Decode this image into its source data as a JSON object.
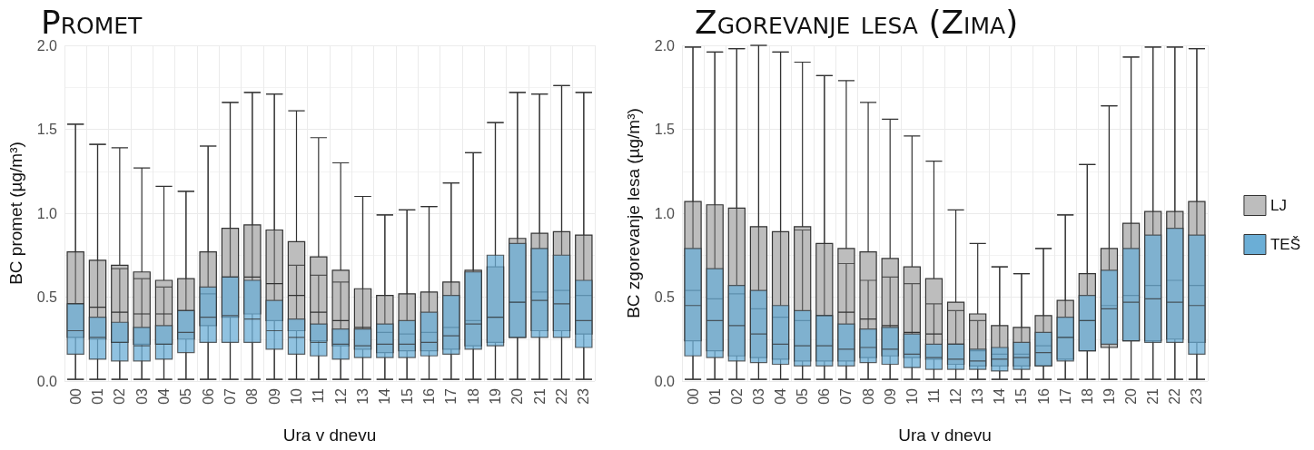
{
  "chart_data": [
    {
      "type": "box",
      "title": "Promet",
      "xlabel": "Ura v dnevu",
      "ylabel": "BC promet (µg/m³)",
      "categories": [
        "00",
        "01",
        "02",
        "03",
        "04",
        "05",
        "06",
        "07",
        "08",
        "09",
        "10",
        "11",
        "12",
        "13",
        "14",
        "15",
        "16",
        "17",
        "18",
        "19",
        "20",
        "21",
        "22",
        "23"
      ],
      "ylim": [
        0,
        2
      ],
      "yticks": [
        {
          "value": 0,
          "label": "0.0"
        },
        {
          "value": 0.5,
          "label": "0.5"
        },
        {
          "value": 1,
          "label": "1.0"
        },
        {
          "value": 1.5,
          "label": "1.5"
        },
        {
          "value": 2,
          "label": "2.0"
        }
      ],
      "grid": true,
      "legend": false,
      "series": [
        {
          "color": "#bdbdbd",
          "boxes": [
            {
              "low": 0.01,
              "q1": 0.26,
              "median": 0.46,
              "q3": 0.77,
              "high": 1.53
            },
            {
              "low": 0.01,
              "q1": 0.25,
              "median": 0.44,
              "q3": 0.72,
              "high": 1.41
            },
            {
              "low": 0.01,
              "q1": 0.23,
              "median": 0.41,
              "q3": 0.69,
              "high": 1.39
            },
            {
              "low": 0.01,
              "q1": 0.22,
              "median": 0.4,
              "q3": 0.65,
              "high": 1.27
            },
            {
              "low": 0.01,
              "q1": 0.22,
              "median": 0.4,
              "q3": 0.6,
              "high": 1.16
            },
            {
              "low": 0.01,
              "q1": 0.25,
              "median": 0.42,
              "q3": 0.61,
              "high": 1.13
            },
            {
              "low": 0.01,
              "q1": 0.33,
              "median": 0.52,
              "q3": 0.77,
              "high": 1.4
            },
            {
              "low": 0.01,
              "q1": 0.38,
              "median": 0.62,
              "q3": 0.91,
              "high": 1.66
            },
            {
              "low": 0.01,
              "q1": 0.4,
              "median": 0.62,
              "q3": 0.93,
              "high": 1.72
            },
            {
              "low": 0.01,
              "q1": 0.36,
              "median": 0.58,
              "q3": 0.9,
              "high": 1.71
            },
            {
              "low": 0.01,
              "q1": 0.3,
              "median": 0.51,
              "q3": 0.83,
              "high": 1.61
            },
            {
              "low": 0.01,
              "q1": 0.24,
              "median": 0.41,
              "q3": 0.74,
              "high": 1.45
            },
            {
              "low": 0.01,
              "q1": 0.21,
              "median": 0.36,
              "q3": 0.66,
              "high": 1.3
            },
            {
              "low": 0.01,
              "q1": 0.19,
              "median": 0.32,
              "q3": 0.55,
              "high": 1.1
            },
            {
              "low": 0.01,
              "q1": 0.17,
              "median": 0.29,
              "q3": 0.51,
              "high": 0.99
            },
            {
              "low": 0.01,
              "q1": 0.18,
              "median": 0.28,
              "q3": 0.52,
              "high": 1.02
            },
            {
              "low": 0.01,
              "q1": 0.18,
              "median": 0.29,
              "q3": 0.53,
              "high": 1.04
            },
            {
              "low": 0.01,
              "q1": 0.19,
              "median": 0.32,
              "q3": 0.59,
              "high": 1.18
            },
            {
              "low": 0.01,
              "q1": 0.21,
              "median": 0.36,
              "q3": 0.66,
              "high": 1.36
            },
            {
              "low": 0.01,
              "q1": 0.23,
              "median": 0.38,
              "q3": 0.68,
              "high": 1.54
            },
            {
              "low": 0.01,
              "q1": 0.26,
              "median": 0.47,
              "q3": 0.85,
              "high": 1.72
            },
            {
              "low": 0.01,
              "q1": 0.3,
              "median": 0.53,
              "q3": 0.88,
              "high": 1.71
            },
            {
              "low": 0.01,
              "q1": 0.3,
              "median": 0.54,
              "q3": 0.89,
              "high": 1.76
            },
            {
              "low": 0.01,
              "q1": 0.28,
              "median": 0.51,
              "q3": 0.87,
              "high": 1.72
            }
          ]
        },
        {
          "color": "#6baed6",
          "boxes": [
            {
              "low": 0.01,
              "q1": 0.16,
              "median": 0.3,
              "q3": 0.46,
              "high": 1.53
            },
            {
              "low": 0.01,
              "q1": 0.13,
              "median": 0.26,
              "q3": 0.38,
              "high": 1.41
            },
            {
              "low": 0.01,
              "q1": 0.12,
              "median": 0.23,
              "q3": 0.35,
              "high": 0.67
            },
            {
              "low": 0.01,
              "q1": 0.12,
              "median": 0.21,
              "q3": 0.32,
              "high": 0.61
            },
            {
              "low": 0.01,
              "q1": 0.13,
              "median": 0.22,
              "q3": 0.33,
              "high": 0.56
            },
            {
              "low": 0.01,
              "q1": 0.17,
              "median": 0.29,
              "q3": 0.42,
              "high": 1.13
            },
            {
              "low": 0.01,
              "q1": 0.23,
              "median": 0.38,
              "q3": 0.56,
              "high": 1.4
            },
            {
              "low": 0.01,
              "q1": 0.23,
              "median": 0.39,
              "q3": 0.62,
              "high": 1.66
            },
            {
              "low": 0.01,
              "q1": 0.23,
              "median": 0.37,
              "q3": 0.6,
              "high": 1.72
            },
            {
              "low": 0.01,
              "q1": 0.19,
              "median": 0.3,
              "q3": 0.48,
              "high": 1.71
            },
            {
              "low": 0.01,
              "q1": 0.16,
              "median": 0.26,
              "q3": 0.37,
              "high": 0.69
            },
            {
              "low": 0.01,
              "q1": 0.15,
              "median": 0.23,
              "q3": 0.34,
              "high": 0.63
            },
            {
              "low": 0.01,
              "q1": 0.13,
              "median": 0.22,
              "q3": 0.31,
              "high": 0.59
            },
            {
              "low": 0.01,
              "q1": 0.14,
              "median": 0.21,
              "q3": 0.31,
              "high": 1.1
            },
            {
              "low": 0.01,
              "q1": 0.14,
              "median": 0.22,
              "q3": 0.34,
              "high": 0.99
            },
            {
              "low": 0.01,
              "q1": 0.14,
              "median": 0.22,
              "q3": 0.36,
              "high": 1.02
            },
            {
              "low": 0.01,
              "q1": 0.15,
              "median": 0.23,
              "q3": 0.41,
              "high": 1.04
            },
            {
              "low": 0.01,
              "q1": 0.16,
              "median": 0.27,
              "q3": 0.51,
              "high": 1.18
            },
            {
              "low": 0.01,
              "q1": 0.19,
              "median": 0.34,
              "q3": 0.65,
              "high": 1.36
            },
            {
              "low": 0.01,
              "q1": 0.21,
              "median": 0.38,
              "q3": 0.75,
              "high": 1.54
            },
            {
              "low": 0.01,
              "q1": 0.26,
              "median": 0.47,
              "q3": 0.82,
              "high": 1.72
            },
            {
              "low": 0.01,
              "q1": 0.26,
              "median": 0.48,
              "q3": 0.79,
              "high": 1.71
            },
            {
              "low": 0.01,
              "q1": 0.26,
              "median": 0.46,
              "q3": 0.75,
              "high": 1.76
            },
            {
              "low": 0.01,
              "q1": 0.2,
              "median": 0.36,
              "q3": 0.6,
              "high": 1.72
            }
          ]
        }
      ]
    },
    {
      "type": "box",
      "title": "Zgorevanje lesa (Zima)",
      "xlabel": "Ura v dnevu",
      "ylabel": "BC zgorevanje lesa (µg/m³)",
      "categories": [
        "00",
        "01",
        "02",
        "03",
        "04",
        "05",
        "06",
        "07",
        "08",
        "09",
        "10",
        "11",
        "12",
        "13",
        "14",
        "15",
        "16",
        "17",
        "18",
        "19",
        "20",
        "21",
        "22",
        "23"
      ],
      "ylim": [
        0,
        2
      ],
      "yticks": [
        {
          "value": 0,
          "label": "0.0"
        },
        {
          "value": 0.5,
          "label": "0.5"
        },
        {
          "value": 1,
          "label": "1.0"
        },
        {
          "value": 1.5,
          "label": "1.5"
        },
        {
          "value": 2,
          "label": "2.0"
        }
      ],
      "grid": true,
      "legend": "right",
      "series": [
        {
          "name": "LJ",
          "color": "#bdbdbd",
          "boxes": [
            {
              "low": 0.01,
              "q1": 0.24,
              "median": 0.54,
              "q3": 1.07,
              "high": 1.99
            },
            {
              "low": 0.01,
              "q1": 0.18,
              "median": 0.49,
              "q3": 1.05,
              "high": 1.96
            },
            {
              "low": 0.01,
              "q1": 0.15,
              "median": 0.52,
              "q3": 1.03,
              "high": 1.98
            },
            {
              "low": 0.01,
              "q1": 0.14,
              "median": 0.43,
              "q3": 0.92,
              "high": 2.0
            },
            {
              "low": 0.01,
              "q1": 0.13,
              "median": 0.38,
              "q3": 0.89,
              "high": 1.96
            },
            {
              "low": 0.01,
              "q1": 0.12,
              "median": 0.36,
              "q3": 0.92,
              "high": 1.9
            },
            {
              "low": 0.01,
              "q1": 0.12,
              "median": 0.39,
              "q3": 0.82,
              "high": 1.82
            },
            {
              "low": 0.01,
              "q1": 0.12,
              "median": 0.41,
              "q3": 0.79,
              "high": 1.79
            },
            {
              "low": 0.01,
              "q1": 0.14,
              "median": 0.37,
              "q3": 0.77,
              "high": 1.66
            },
            {
              "low": 0.01,
              "q1": 0.15,
              "median": 0.33,
              "q3": 0.73,
              "high": 1.56
            },
            {
              "low": 0.01,
              "q1": 0.14,
              "median": 0.29,
              "q3": 0.68,
              "high": 1.46
            },
            {
              "low": 0.01,
              "q1": 0.13,
              "median": 0.28,
              "q3": 0.61,
              "high": 1.31
            },
            {
              "low": 0.01,
              "q1": 0.1,
              "median": 0.22,
              "q3": 0.47,
              "high": 1.02
            },
            {
              "low": 0.01,
              "q1": 0.09,
              "median": 0.18,
              "q3": 0.4,
              "high": 0.82
            },
            {
              "low": 0.01,
              "q1": 0.09,
              "median": 0.16,
              "q3": 0.33,
              "high": 0.68
            },
            {
              "low": 0.01,
              "q1": 0.09,
              "median": 0.16,
              "q3": 0.32,
              "high": 0.64
            },
            {
              "low": 0.01,
              "q1": 0.09,
              "median": 0.21,
              "q3": 0.39,
              "high": 0.79
            },
            {
              "low": 0.01,
              "q1": 0.13,
              "median": 0.26,
              "q3": 0.48,
              "high": 0.99
            },
            {
              "low": 0.01,
              "q1": 0.18,
              "median": 0.36,
              "q3": 0.64,
              "high": 1.29
            },
            {
              "low": 0.01,
              "q1": 0.2,
              "median": 0.45,
              "q3": 0.79,
              "high": 1.64
            },
            {
              "low": 0.01,
              "q1": 0.24,
              "median": 0.51,
              "q3": 0.94,
              "high": 1.93
            },
            {
              "low": 0.01,
              "q1": 0.24,
              "median": 0.57,
              "q3": 1.01,
              "high": 1.99
            },
            {
              "low": 0.01,
              "q1": 0.25,
              "median": 0.6,
              "q3": 1.01,
              "high": 1.99
            },
            {
              "low": 0.01,
              "q1": 0.23,
              "median": 0.57,
              "q3": 1.07,
              "high": 1.98
            }
          ]
        },
        {
          "name": "TEŠ",
          "color": "#6baed6",
          "boxes": [
            {
              "low": 0.01,
              "q1": 0.15,
              "median": 0.45,
              "q3": 0.79,
              "high": 1.99
            },
            {
              "low": 0.01,
              "q1": 0.14,
              "median": 0.36,
              "q3": 0.67,
              "high": 1.96
            },
            {
              "low": 0.01,
              "q1": 0.12,
              "median": 0.33,
              "q3": 0.57,
              "high": 1.98
            },
            {
              "low": 0.01,
              "q1": 0.11,
              "median": 0.28,
              "q3": 0.54,
              "high": 2.0
            },
            {
              "low": 0.01,
              "q1": 0.1,
              "median": 0.22,
              "q3": 0.45,
              "high": 1.96
            },
            {
              "low": 0.01,
              "q1": 0.09,
              "median": 0.21,
              "q3": 0.42,
              "high": 0.9
            },
            {
              "low": 0.01,
              "q1": 0.09,
              "median": 0.21,
              "q3": 0.39,
              "high": 1.82
            },
            {
              "low": 0.01,
              "q1": 0.09,
              "median": 0.19,
              "q3": 0.34,
              "high": 0.7
            },
            {
              "low": 0.01,
              "q1": 0.11,
              "median": 0.2,
              "q3": 0.31,
              "high": 0.6
            },
            {
              "low": 0.01,
              "q1": 0.1,
              "median": 0.19,
              "q3": 0.32,
              "high": 0.62
            },
            {
              "low": 0.01,
              "q1": 0.08,
              "median": 0.16,
              "q3": 0.28,
              "high": 0.58
            },
            {
              "low": 0.01,
              "q1": 0.07,
              "median": 0.14,
              "q3": 0.22,
              "high": 0.46
            },
            {
              "low": 0.01,
              "q1": 0.07,
              "median": 0.13,
              "q3": 0.22,
              "high": 0.42
            },
            {
              "low": 0.01,
              "q1": 0.07,
              "median": 0.12,
              "q3": 0.19,
              "high": 0.36
            },
            {
              "low": 0.01,
              "q1": 0.06,
              "median": 0.13,
              "q3": 0.2,
              "high": 0.68
            },
            {
              "low": 0.01,
              "q1": 0.07,
              "median": 0.14,
              "q3": 0.23,
              "high": 0.64
            },
            {
              "low": 0.01,
              "q1": 0.09,
              "median": 0.17,
              "q3": 0.29,
              "high": 0.79
            },
            {
              "low": 0.01,
              "q1": 0.12,
              "median": 0.26,
              "q3": 0.38,
              "high": 0.99
            },
            {
              "low": 0.01,
              "q1": 0.18,
              "median": 0.36,
              "q3": 0.51,
              "high": 1.29
            },
            {
              "low": 0.01,
              "q1": 0.22,
              "median": 0.43,
              "q3": 0.66,
              "high": 1.64
            },
            {
              "low": 0.01,
              "q1": 0.24,
              "median": 0.47,
              "q3": 0.79,
              "high": 1.93
            },
            {
              "low": 0.01,
              "q1": 0.23,
              "median": 0.49,
              "q3": 0.87,
              "high": 1.99
            },
            {
              "low": 0.01,
              "q1": 0.23,
              "median": 0.47,
              "q3": 0.91,
              "high": 1.99
            },
            {
              "low": 0.01,
              "q1": 0.16,
              "median": 0.45,
              "q3": 0.87,
              "high": 1.98
            }
          ]
        }
      ]
    }
  ]
}
